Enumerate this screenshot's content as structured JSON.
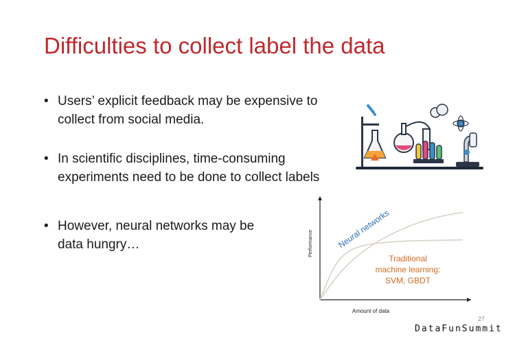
{
  "slide": {
    "title": "Difficulties to collect label the data",
    "bullets": [
      {
        "line1": "Users’ explicit feedback may be expensive to",
        "line2": "collect from social media."
      },
      {
        "line1": "In scientific disciplines, time-consuming",
        "line2": "experiments need to be done to collect labels"
      },
      {
        "line1": "However, neural networks may be",
        "line2": "data hungry…"
      }
    ],
    "bullet_glyph": "•",
    "page_number": "27",
    "brand": "DataFunSummit",
    "illustration_icon": "laboratory-equipment-icon",
    "colors": {
      "title": "#c0282d",
      "neural_label": "#2f6fb0",
      "traditional_label": "#d26a1e",
      "curves": "#d9d3c8"
    }
  },
  "chart_data": {
    "type": "line",
    "xlabel": "Amount of data",
    "ylabel": "Performance",
    "grid": false,
    "series": [
      {
        "name": "Neural networks",
        "x": [
          0,
          0.1,
          0.2,
          0.35,
          0.5,
          0.7,
          0.9,
          1.0
        ],
        "y": [
          0,
          0.2,
          0.36,
          0.53,
          0.65,
          0.77,
          0.84,
          0.86
        ]
      },
      {
        "name": "Traditional machine learning: SVM, GBDT",
        "x": [
          0,
          0.08,
          0.15,
          0.25,
          0.4,
          0.6,
          0.8,
          1.0
        ],
        "y": [
          0,
          0.28,
          0.43,
          0.52,
          0.56,
          0.58,
          0.585,
          0.59
        ]
      }
    ],
    "annotations": [
      {
        "text": "Neural networks",
        "series": 0
      },
      {
        "text_lines": [
          "Traditional",
          "machine learning:",
          "SVM, GBDT"
        ],
        "series": 1
      }
    ]
  }
}
